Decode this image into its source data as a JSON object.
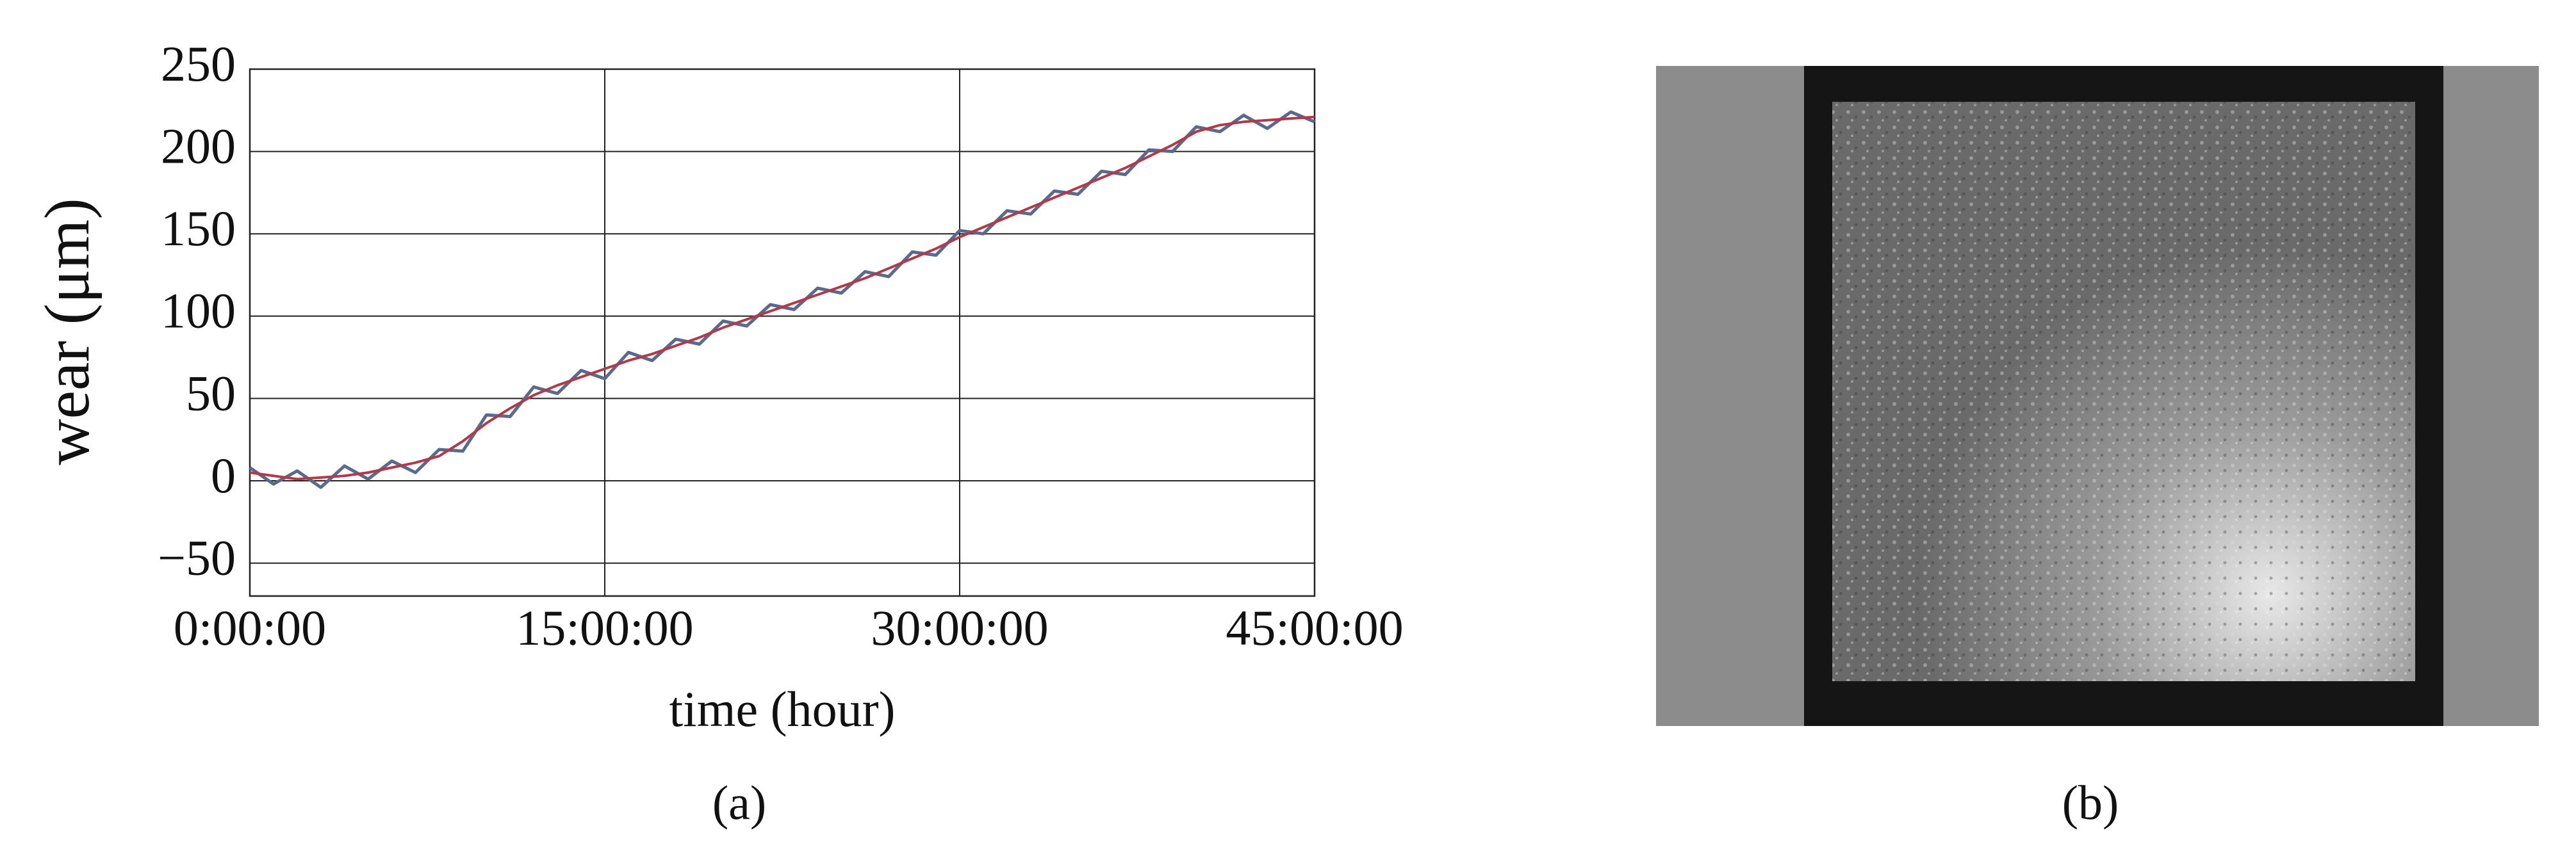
{
  "chart_data": {
    "type": "line",
    "xlabel": "time (hour)",
    "ylabel": "wear (μm)",
    "x": [
      0,
      1,
      2,
      3,
      4,
      5,
      6,
      7,
      8,
      9,
      10,
      11,
      12,
      13,
      14,
      15,
      16,
      17,
      18,
      19,
      20,
      21,
      22,
      23,
      24,
      25,
      26,
      27,
      28,
      29,
      30,
      31,
      32,
      33,
      34,
      35,
      36,
      37,
      38,
      39,
      40,
      41,
      42,
      43,
      44,
      45
    ],
    "xlim": [
      0,
      45
    ],
    "xticks": [
      {
        "value": 0,
        "label": "0:00:00"
      },
      {
        "value": 15,
        "label": "15:00:00"
      },
      {
        "value": 30,
        "label": "30:00:00"
      },
      {
        "value": 45,
        "label": "45:00:00"
      }
    ],
    "ylim": [
      -70,
      250
    ],
    "yticks": [
      {
        "value": -50,
        "label": "−50"
      },
      0,
      50,
      100,
      150,
      200,
      250
    ],
    "grid": true,
    "series": [
      {
        "color": "#5a6a8c",
        "values": [
          8,
          -2,
          6,
          -4,
          9,
          1,
          12,
          5,
          19,
          18,
          40,
          39,
          57,
          53,
          67,
          62,
          78,
          73,
          86,
          83,
          97,
          94,
          107,
          104,
          117,
          114,
          127,
          124,
          139,
          137,
          152,
          150,
          164,
          162,
          176,
          174,
          188,
          186,
          201,
          200,
          215,
          212,
          222,
          214,
          224,
          218
        ]
      },
      {
        "color": "#b23a48",
        "values": [
          5,
          3,
          1,
          2,
          3,
          5,
          8,
          11,
          15,
          24,
          35,
          44,
          52,
          58,
          63,
          68,
          73,
          77,
          82,
          87,
          93,
          98,
          103,
          108,
          113,
          118,
          123,
          129,
          135,
          141,
          148,
          154,
          160,
          166,
          172,
          178,
          184,
          190,
          197,
          204,
          212,
          216,
          218,
          219,
          220,
          221
        ]
      }
    ]
  },
  "panel_labels": [
    "(a)",
    "(b)"
  ]
}
